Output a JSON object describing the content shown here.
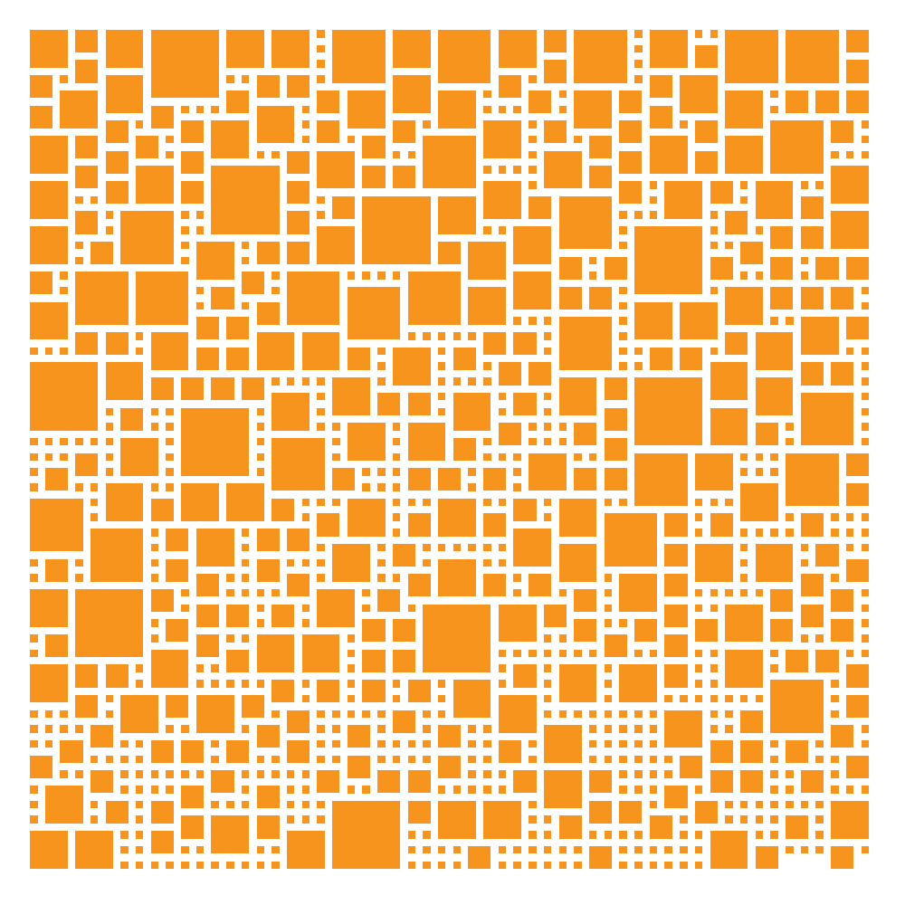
{
  "colors": {
    "square": "#F7941E",
    "background": "#FFFFFF"
  },
  "pattern": {
    "type": "square-packing-mosaic",
    "grid_columns": 56,
    "grid_rows": 56,
    "square_sizes_in_cells": [
      1,
      2,
      3,
      4,
      5
    ]
  }
}
